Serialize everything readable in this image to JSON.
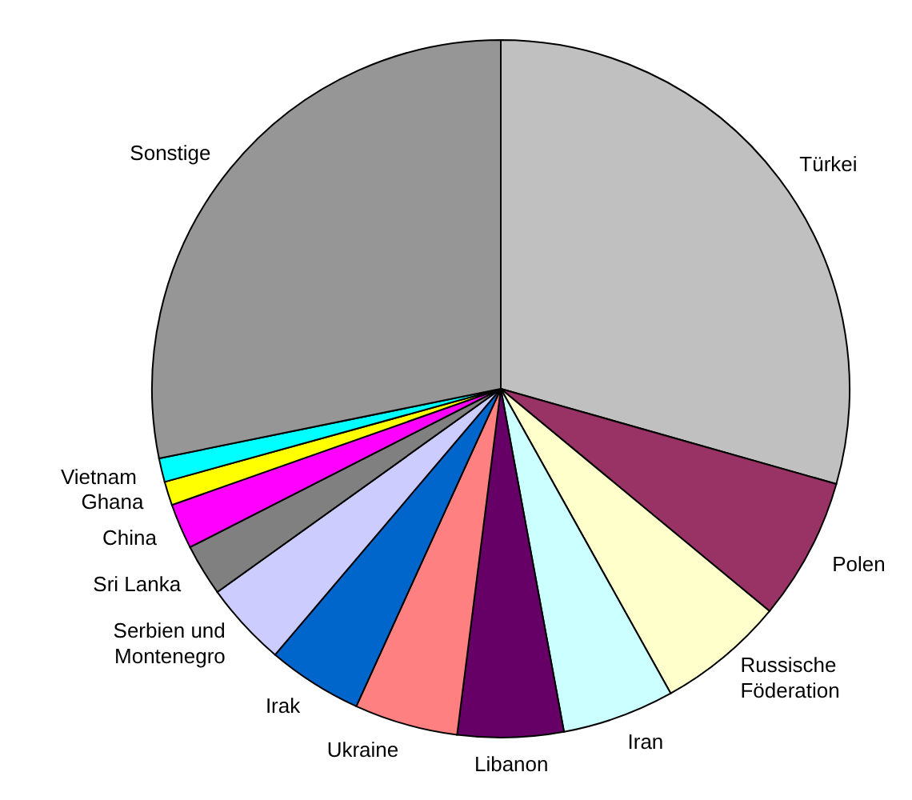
{
  "chart_data": {
    "type": "pie",
    "categories": [
      "Türkei",
      "Polen",
      "Russische Föderation",
      "Iran",
      "Libanon",
      "Ukraine",
      "Irak",
      "Serbien und Montenegro",
      "Sri Lanka",
      "China",
      "Ghana",
      "Vietnam",
      "Sonstige"
    ],
    "values": [
      29.4,
      6.6,
      5.9,
      5.2,
      4.9,
      4.8,
      4.4,
      3.9,
      2.4,
      2.1,
      1.1,
      1.1,
      28.2
    ],
    "colors": [
      "#c0c0c0",
      "#993366",
      "#ffffcc",
      "#ccffff",
      "#660066",
      "#ff8080",
      "#0066cc",
      "#ccccff",
      "#808080",
      "#ff00ff",
      "#ffff00",
      "#00ffff",
      "#969696"
    ]
  }
}
